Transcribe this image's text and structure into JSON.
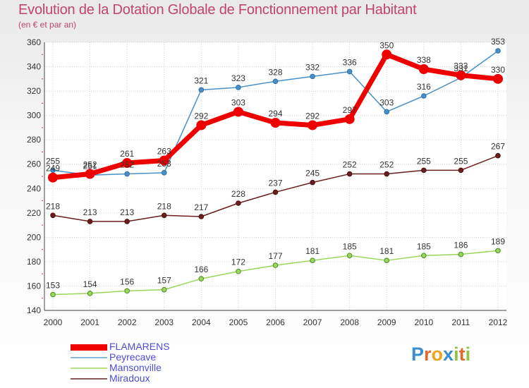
{
  "header": {
    "title": "Evolution de la Dotation Globale de Fonctionnement par Habitant",
    "subtitle": "(en € et par an)"
  },
  "chart_data": {
    "type": "line",
    "title": "Evolution de la Dotation Globale de Fonctionnement par Habitant",
    "subtitle": "(en € et par an)",
    "xlabel": "",
    "ylabel": "",
    "x": [
      "2000",
      "2001",
      "2002",
      "2003",
      "2004",
      "2005",
      "2006",
      "2007",
      "2008",
      "2009",
      "2010",
      "2011",
      "2012"
    ],
    "ylim": [
      140,
      360
    ],
    "yticks": [
      140,
      160,
      180,
      200,
      220,
      240,
      260,
      280,
      300,
      320,
      340,
      360
    ],
    "grid": true,
    "legend_position": "bottom-left",
    "series": [
      {
        "name": "Miradoux",
        "color": "#6b1e1e",
        "values": [
          218,
          213,
          213,
          218,
          217,
          228,
          237,
          245,
          252,
          252,
          255,
          255,
          267
        ]
      },
      {
        "name": "Mansonville",
        "color": "#9ad65a",
        "values": [
          153,
          154,
          156,
          157,
          166,
          172,
          177,
          181,
          185,
          181,
          185,
          186,
          189
        ]
      },
      {
        "name": "Peyrecave",
        "color": "#4a90c8",
        "values": [
          255,
          251,
          252,
          253,
          321,
          323,
          328,
          332,
          336,
          303,
          316,
          331,
          353
        ]
      },
      {
        "name": "FLAMARENS",
        "color": "#ee0000",
        "values": [
          249,
          252,
          261,
          263,
          292,
          303,
          294,
          292,
          297,
          350,
          338,
          333,
          330
        ]
      }
    ]
  },
  "legend": {
    "items": [
      {
        "label": "FLAMARENS",
        "color": "#ee0000",
        "text_color": "#4d4dd6"
      },
      {
        "label": "Peyrecave",
        "color": "#8ab8dc",
        "text_color": "#4d4dd6"
      },
      {
        "label": "Mansonville",
        "color": "#b6e38a",
        "text_color": "#4d4dd6"
      },
      {
        "label": "Miradoux",
        "color": "#8a5a5a",
        "text_color": "#4d4dd6"
      }
    ]
  },
  "logo": {
    "letters": [
      {
        "char": "P",
        "color": "#3b8fd0"
      },
      {
        "char": "r",
        "color": "#e26a2c"
      },
      {
        "char": "o",
        "color": "#f0a321"
      },
      {
        "char": "x",
        "color": "#3b8fd0"
      },
      {
        "char": "i",
        "color": "#8cc63f"
      },
      {
        "char": "t",
        "color": "#e26a2c"
      },
      {
        "char": "i",
        "color": "#8cc63f"
      }
    ]
  }
}
